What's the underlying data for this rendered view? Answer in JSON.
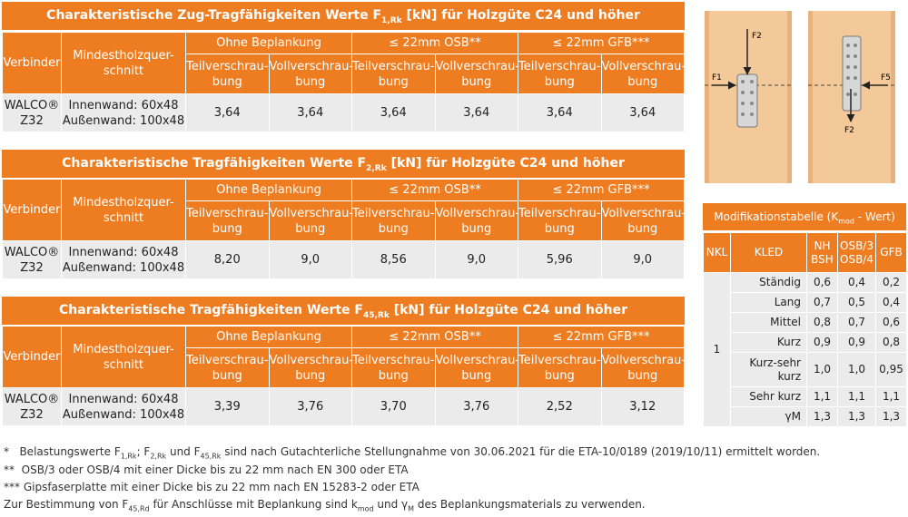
{
  "tables": [
    {
      "title": "Charakteristische Zug-Tragfähigkeiten Werte F1,Rk [kN] für Holzgüte C24 und höher",
      "title_pre": "Charakteristische Zug-Tragfähigkeiten Werte F",
      "title_sub": "1,Rk",
      "title_post": " [kN] für Holzgüte C24 und höher",
      "values": [
        "3,64",
        "3,64",
        "3,64",
        "3,64",
        "3,64",
        "3,64"
      ]
    },
    {
      "title": "Charakteristische Tragfähigkeiten Werte F2,Rk [kN] für Holzgüte C24 und höher",
      "title_pre": "Charakteristische Tragfähigkeiten Werte F",
      "title_sub": "2,Rk",
      "title_post": " [kN] für Holzgüte C24 und höher",
      "values": [
        "8,20",
        "9,0",
        "8,56",
        "9,0",
        "5,96",
        "9,0"
      ]
    },
    {
      "title": "Charakteristische Tragfähigkeiten Werte F45,Rk [kN] für Holzgüte C24 und höher",
      "title_pre": "Charakteristische Tragfähigkeiten Werte F",
      "title_sub": "45,Rk",
      "title_post": " [kN] für Holzgüte C24 und höher",
      "values": [
        "3,39",
        "3,76",
        "3,70",
        "3,76",
        "2,52",
        "3,12"
      ]
    }
  ],
  "headers": {
    "verbinder": "Verbinder",
    "mindest_1": "Mindestholzquer-",
    "mindest_2": "schnitt",
    "ohne": "Ohne Beplankung",
    "osb": "≤ 22mm OSB**",
    "gfb": "≤ 22mm GFB***",
    "teil_1": "Teilverschrau-",
    "teil_2": "bung",
    "voll_1": "Vollverschrau-",
    "voll_2": "bung"
  },
  "row": {
    "verbinder_1": "WALCO®",
    "verbinder_2": "Z32",
    "innenwand": "Innenwand: 60x48",
    "aussenwand": "Außenwand: 100x48"
  },
  "mod": {
    "title_pre": "Modifikationstabelle (K",
    "title_sub": "mod",
    "title_post": " - Wert)",
    "cols": [
      "NKL",
      "KLED",
      "NH BSH",
      "OSB/3 OSB/4",
      "GFB"
    ],
    "col_nh_1": "NH",
    "col_nh_2": "BSH",
    "col_osb_1": "OSB/3",
    "col_osb_2": "OSB/4",
    "nkl": "1",
    "rows": [
      {
        "kled": "Ständig",
        "nh": "0,6",
        "osb": "0,4",
        "gfb": "0,2"
      },
      {
        "kled": "Lang",
        "nh": "0,7",
        "osb": "0,5",
        "gfb": "0,4"
      },
      {
        "kled": "Mittel",
        "nh": "0,8",
        "osb": "0,7",
        "gfb": "0,6"
      },
      {
        "kled": "Kurz",
        "nh": "0,9",
        "osb": "0,9",
        "gfb": "0,8"
      },
      {
        "kled": "Kurz-sehr kurz",
        "kled_1": "Kurz-sehr",
        "kled_2": "kurz",
        "nh": "1,0",
        "osb": "1,0",
        "gfb": "0,95"
      },
      {
        "kled": "Sehr kurz",
        "nh": "1,1",
        "osb": "1,1",
        "gfb": "1,1"
      },
      {
        "kled": "γM",
        "nh": "1,3",
        "osb": "1,3",
        "gfb": "1,3"
      }
    ]
  },
  "figure": {
    "f2": "F2",
    "f1": "F1",
    "f5": "F5"
  },
  "footnotes": {
    "n1_mark": "*",
    "n1_a": "Belastungswerte F",
    "n1_b": "; F",
    "n1_c": " und F",
    "n1_d": " sind nach Gutachterliche Stellungnahme von 30.06.2021 für die ETA-10/0189 (2019/10/11) ermittelt worden.",
    "n1_sub1": "1,Rk",
    "n1_sub2": "2,Rk",
    "n1_sub3": "45,Rk",
    "n2_mark": "**",
    "n2": "OSB/3 oder OSB/4 mit einer Dicke bis zu 22 mm nach EN 300 oder ETA",
    "n3_mark": "***",
    "n3": "Gipsfaserplatte mit einer Dicke bis zu 22 mm nach EN 15283-2 oder ETA",
    "n4_a": "Zur Bestimmung von F",
    "n4_sub1": "45,Rd",
    "n4_b": " für Anschlüsse mit Beplankung sind k",
    "n4_sub2": "mod",
    "n4_c": " und γ",
    "n4_sub3": "M",
    "n4_d": " des Beplankungsmaterials zu verwenden."
  },
  "colors": {
    "accent": "#ee7d22",
    "cell": "#ebebeb",
    "wood": "#f3c99a"
  }
}
